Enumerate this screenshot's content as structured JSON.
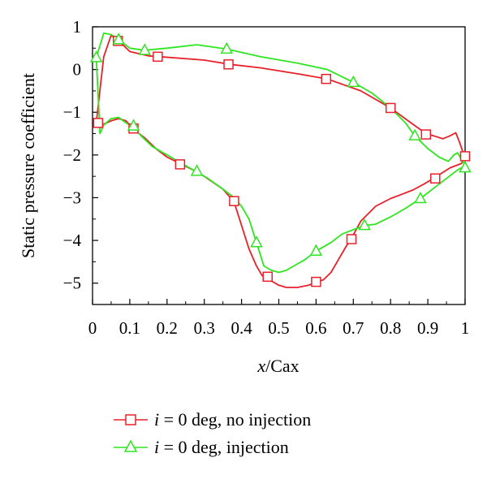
{
  "chart_data": {
    "type": "line",
    "xlabel": {
      "italic": "x",
      "rest": "/Cax"
    },
    "ylabel": "Static pressure coefficient",
    "xlim": [
      0,
      1
    ],
    "ylim": [
      -5.5,
      1
    ],
    "xticks": [
      "0",
      "0.1",
      "0.2",
      "0.3",
      "0.4",
      "0.5",
      "0.6",
      "0.7",
      "0.8",
      "0.9",
      "1"
    ],
    "yticks": [
      "1",
      "0",
      "−1",
      "−2",
      "−3",
      "−4",
      "−5"
    ],
    "ytick_values": [
      1,
      0,
      -1,
      -2,
      -3,
      -4,
      -5
    ],
    "grid": false,
    "legend_position": "bottom",
    "series": [
      {
        "name": {
          "italic": "i",
          "rest": " = 0 deg, no injection"
        },
        "color": "#e8202a",
        "marker": "square",
        "x": [
          0.01,
          0.03,
          0.05,
          0.068,
          0.085,
          0.1,
          0.12,
          0.15,
          0.18,
          0.3,
          0.37,
          0.45,
          0.55,
          0.63,
          0.72,
          0.8,
          0.86,
          0.895,
          0.915,
          0.94,
          0.96,
          0.975,
          0.985,
          0.995,
          1.0,
          0.99,
          0.96,
          0.92,
          0.89,
          0.86,
          0.83,
          0.8,
          0.76,
          0.72,
          0.695,
          0.68,
          0.66,
          0.64,
          0.62,
          0.6,
          0.58,
          0.55,
          0.52,
          0.5,
          0.47,
          0.455,
          0.44,
          0.42,
          0.38,
          0.35,
          0.3,
          0.27,
          0.235,
          0.2,
          0.17,
          0.14,
          0.11,
          0.09,
          0.07,
          0.05,
          0.03,
          0.015,
          0.01
        ],
        "y": [
          -1.25,
          0.3,
          0.8,
          0.68,
          0.55,
          0.42,
          0.38,
          0.32,
          0.3,
          0.22,
          0.12,
          0.04,
          -0.1,
          -0.22,
          -0.5,
          -0.9,
          -1.28,
          -1.5,
          -1.55,
          -1.62,
          -1.55,
          -1.48,
          -1.7,
          -1.95,
          -2.05,
          -2.2,
          -2.3,
          -2.52,
          -2.68,
          -2.82,
          -2.92,
          -3.02,
          -3.2,
          -3.55,
          -3.95,
          -4.15,
          -4.45,
          -4.75,
          -4.92,
          -4.98,
          -5.05,
          -5.1,
          -5.1,
          -5.05,
          -4.9,
          -4.82,
          -4.6,
          -4.2,
          -3.1,
          -2.8,
          -2.5,
          -2.35,
          -2.2,
          -2.05,
          -1.85,
          -1.6,
          -1.4,
          -1.2,
          -1.15,
          -1.2,
          -1.28,
          -1.3,
          -1.25
        ],
        "markers_x": [
          0.015,
          0.068,
          0.11,
          0.175,
          0.235,
          0.365,
          0.38,
          0.47,
          0.6,
          0.627,
          0.695,
          0.8,
          0.895,
          0.92,
          1.0
        ],
        "markers_y": [
          -1.25,
          0.67,
          -1.38,
          0.3,
          -2.22,
          0.12,
          -3.08,
          -4.85,
          -4.97,
          -0.22,
          -3.97,
          -0.9,
          -1.52,
          -2.55,
          -2.03
        ]
      },
      {
        "name": {
          "italic": "i",
          "rest": " = 0 deg, injection"
        },
        "color": "#2ee620",
        "marker": "triangle",
        "x": [
          0.01,
          0.03,
          0.05,
          0.07,
          0.1,
          0.14,
          0.2,
          0.28,
          0.36,
          0.45,
          0.55,
          0.63,
          0.7,
          0.75,
          0.8,
          0.84,
          0.865,
          0.9,
          0.93,
          0.955,
          0.97,
          0.98,
          0.99,
          1.0,
          0.98,
          0.95,
          0.92,
          0.88,
          0.84,
          0.8,
          0.76,
          0.73,
          0.7,
          0.67,
          0.64,
          0.6,
          0.57,
          0.54,
          0.52,
          0.5,
          0.48,
          0.46,
          0.44,
          0.42,
          0.4,
          0.38,
          0.35,
          0.31,
          0.28,
          0.24,
          0.2,
          0.16,
          0.13,
          0.11,
          0.09,
          0.07,
          0.05,
          0.03,
          0.02,
          0.01
        ],
        "y": [
          0.28,
          0.85,
          0.82,
          0.7,
          0.5,
          0.45,
          0.5,
          0.58,
          0.48,
          0.3,
          0.15,
          0.0,
          -0.3,
          -0.55,
          -0.9,
          -1.25,
          -1.55,
          -1.85,
          -2.05,
          -2.15,
          -2.0,
          -1.95,
          -2.1,
          -2.25,
          -2.35,
          -2.55,
          -2.75,
          -3.02,
          -3.25,
          -3.45,
          -3.62,
          -3.65,
          -3.75,
          -3.85,
          -4.05,
          -4.25,
          -4.45,
          -4.6,
          -4.7,
          -4.75,
          -4.7,
          -4.6,
          -4.05,
          -3.5,
          -3.2,
          -3.0,
          -2.8,
          -2.55,
          -2.4,
          -2.2,
          -2.0,
          -1.8,
          -1.55,
          -1.35,
          -1.25,
          -1.12,
          -1.15,
          -1.3,
          -1.5,
          0.28
        ],
        "markers_x": [
          0.01,
          0.07,
          0.11,
          0.14,
          0.28,
          0.36,
          0.44,
          0.6,
          0.7,
          0.73,
          0.865,
          0.88,
          1.0
        ],
        "markers_y": [
          0.28,
          0.7,
          -1.32,
          0.45,
          -2.38,
          0.48,
          -4.05,
          -4.25,
          -0.3,
          -3.65,
          -1.55,
          -3.02,
          -2.3
        ]
      }
    ]
  }
}
